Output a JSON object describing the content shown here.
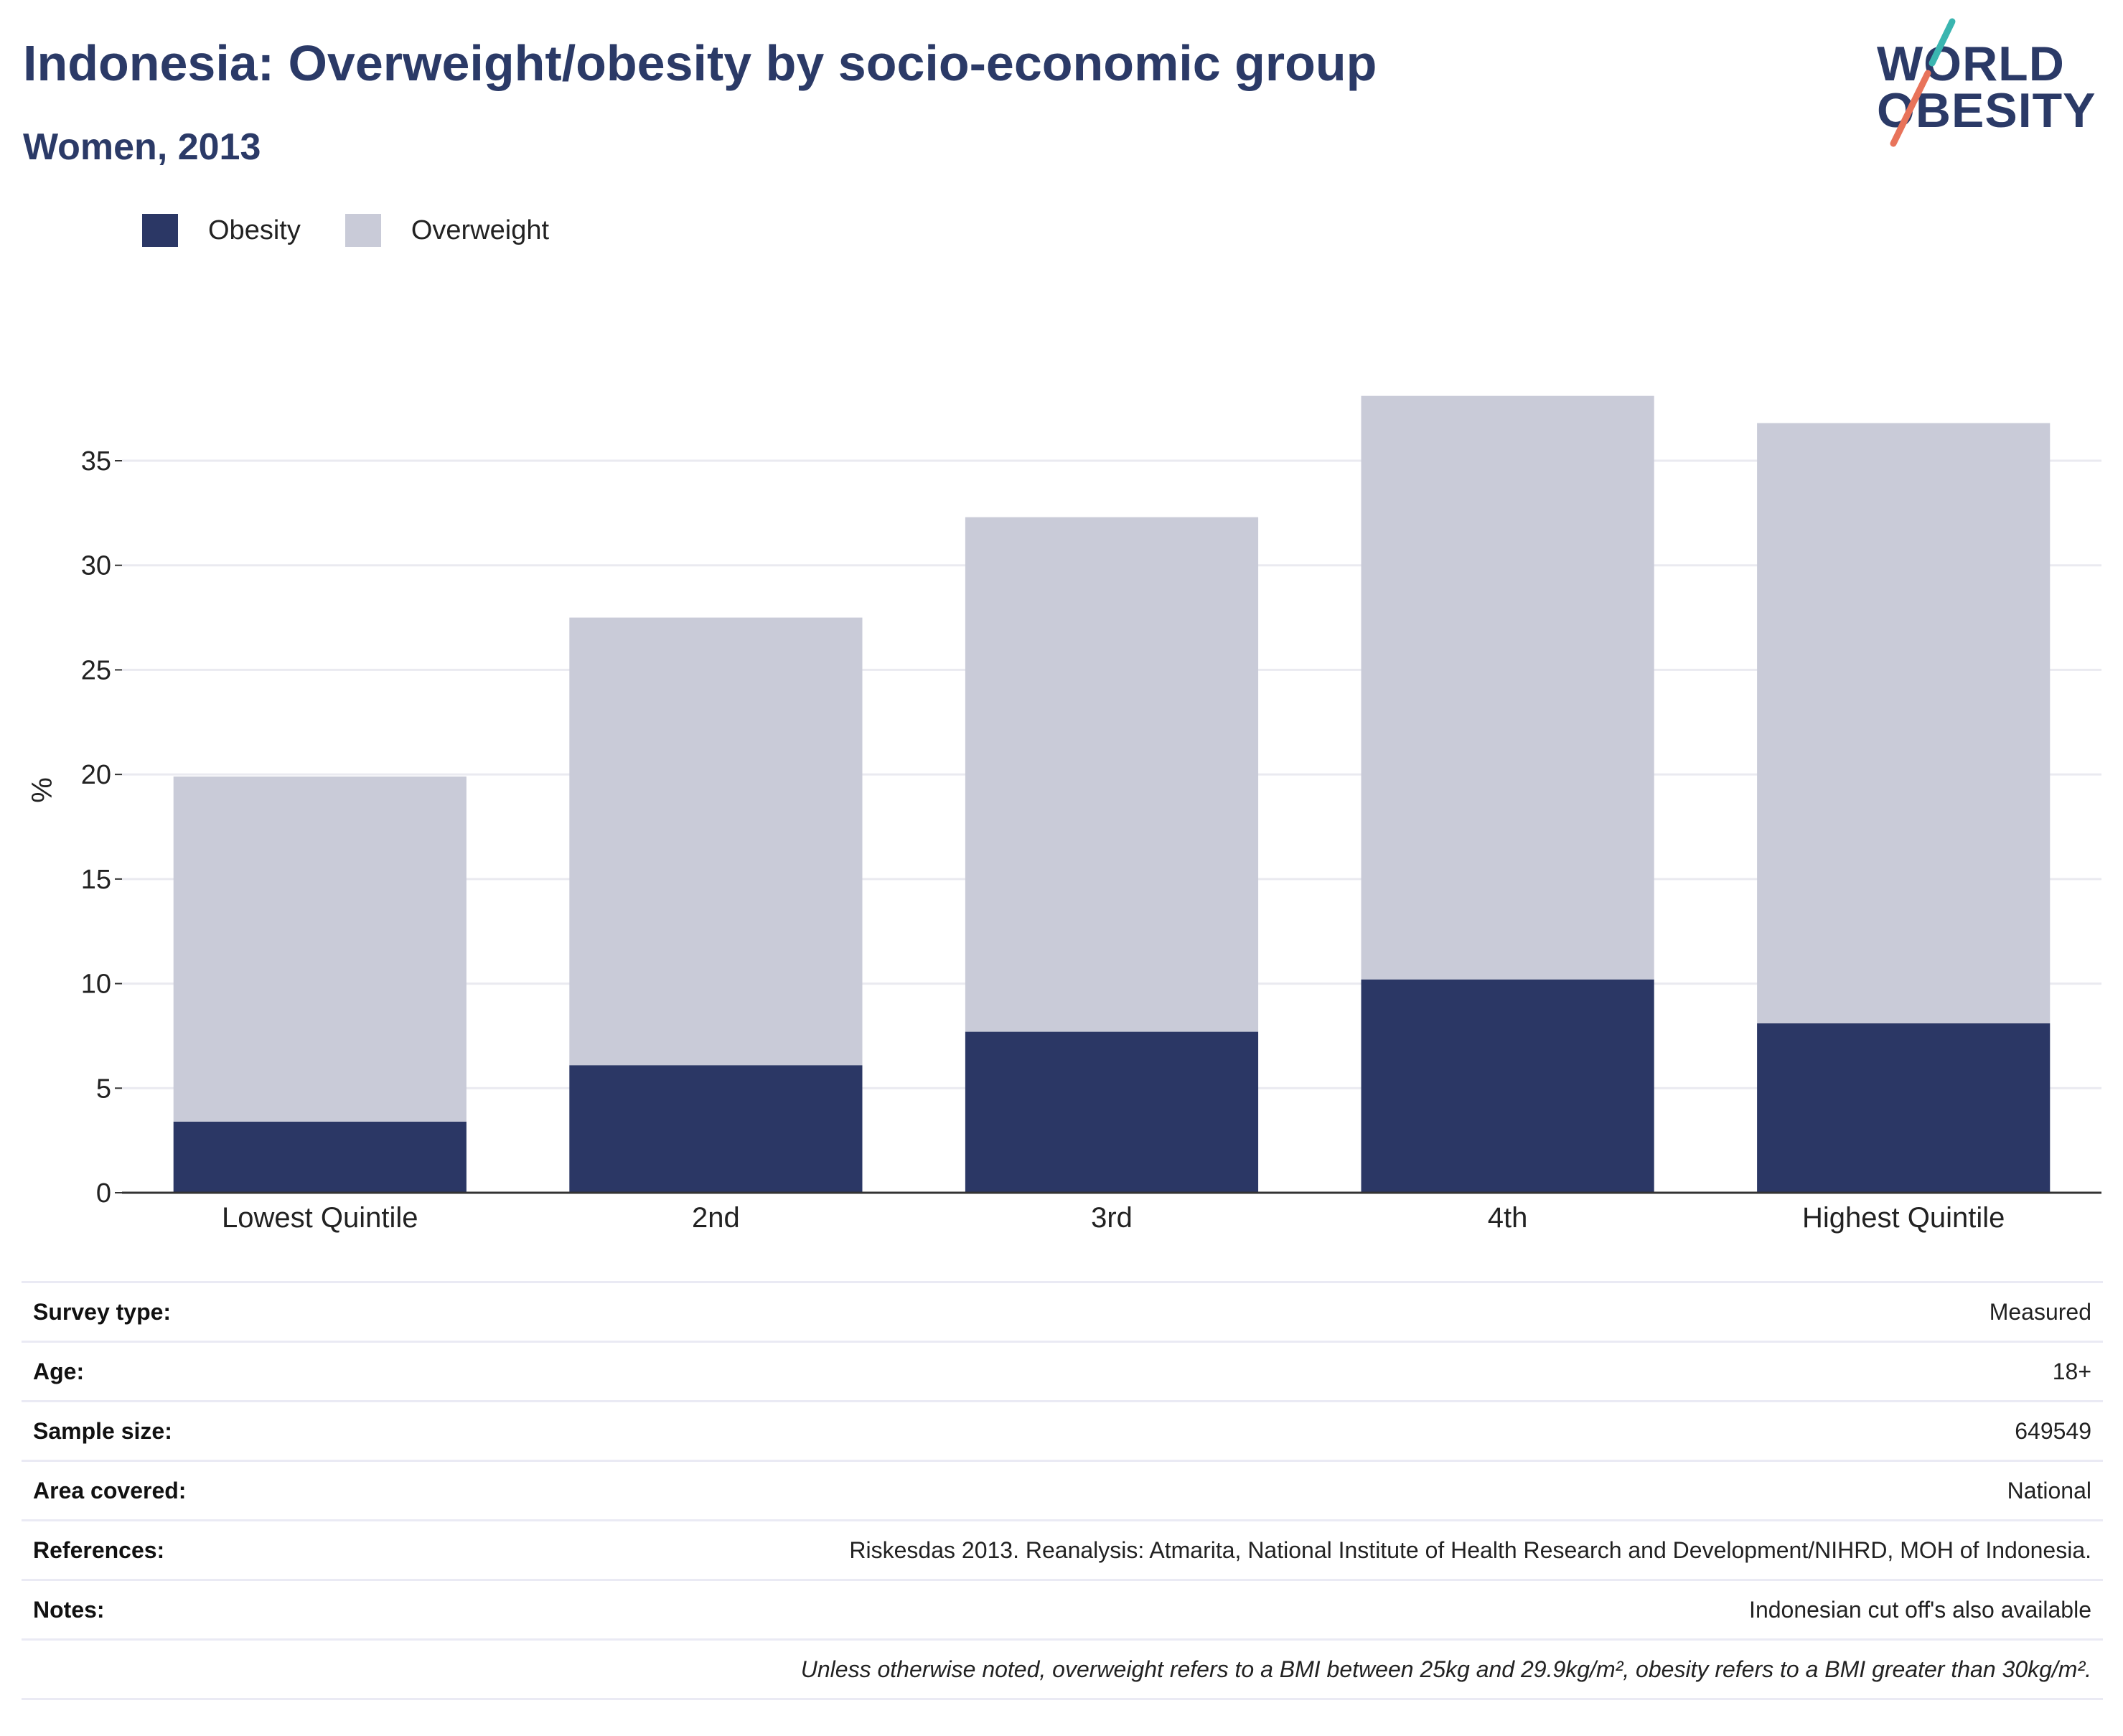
{
  "header": {
    "title": "Indonesia: Overweight/obesity by socio-economic group",
    "subtitle": "Women, 2013"
  },
  "logo": {
    "line1": "WORLD",
    "line2": "OBESITY",
    "accent_teal": "#3ab5b0",
    "accent_coral": "#e8735a"
  },
  "legend": {
    "obesity_label": "Obesity",
    "overweight_label": "Overweight"
  },
  "colors": {
    "obesity": "#2b3765",
    "overweight": "#c9cbd8",
    "grid": "#eaeaf0",
    "axis": "#333333"
  },
  "chart_data": {
    "type": "bar",
    "stacked": true,
    "title": "Indonesia: Overweight/obesity by socio-economic group",
    "subtitle": "Women, 2013",
    "xlabel": "",
    "ylabel": "%",
    "ylim": [
      0,
      38.5
    ],
    "yticks": [
      0,
      5,
      10,
      15,
      20,
      25,
      30,
      35
    ],
    "grid": true,
    "legend_position": "top-left",
    "categories": [
      "Lowest Quintile",
      "2nd",
      "3rd",
      "4th",
      "Highest Quintile"
    ],
    "series": [
      {
        "name": "Obesity",
        "values": [
          3.4,
          6.1,
          7.7,
          10.2,
          8.1
        ]
      },
      {
        "name": "Overweight",
        "values": [
          16.5,
          21.4,
          24.6,
          27.9,
          28.7
        ]
      }
    ]
  },
  "meta": {
    "rows": [
      {
        "key": "Survey type:",
        "value": "Measured"
      },
      {
        "key": "Age:",
        "value": "18+"
      },
      {
        "key": "Sample size:",
        "value": "649549"
      },
      {
        "key": "Area covered:",
        "value": "National"
      },
      {
        "key": "References:",
        "value": "Riskesdas 2013. Reanalysis: Atmarita, National Institute of Health Research and Development/NIHRD, MOH of Indonesia."
      },
      {
        "key": "Notes:",
        "value": "Indonesian cut off's also available"
      }
    ],
    "footnote": "Unless otherwise noted, overweight refers to a BMI between 25kg and 29.9kg/m², obesity refers to a BMI greater than 30kg/m²."
  }
}
